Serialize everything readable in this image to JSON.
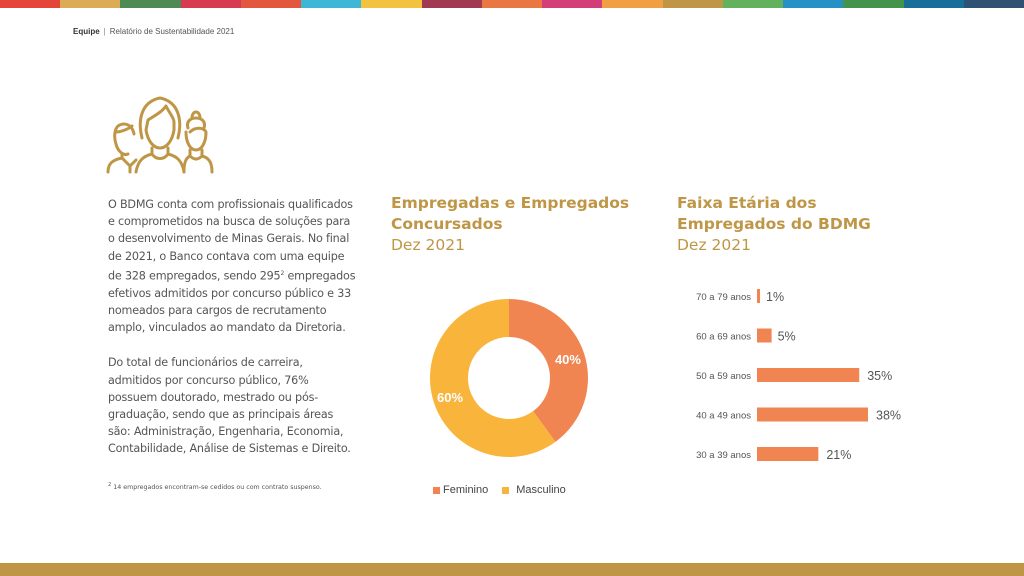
{
  "topbar_colors": [
    "#e5443a",
    "#dbab55",
    "#4e8a53",
    "#d83b4f",
    "#e4573f",
    "#3eb6d6",
    "#f2c33e",
    "#a23952",
    "#ea7743",
    "#d33d78",
    "#f29f43",
    "#bf9646",
    "#62b15d",
    "#2691c6",
    "#44934a",
    "#176f99",
    "#2f5174"
  ],
  "header": {
    "section": "Equipe",
    "separator": "|",
    "report": "Relatório de Sustentabilidade 2021"
  },
  "icons": {
    "team": "people-group-icon"
  },
  "body": {
    "paragraph1_before_sup": "O BDMG conta com profissionais qualificados e comprometidos na busca de soluções para o desenvolvimento de Minas Gerais. No final de 2021, o Banco contava com uma equipe de 328 empregados, sendo 295",
    "paragraph1_sup": "2",
    "paragraph1_after_sup": " empregados efetivos admitidos por concurso público e 33 nomeados para cargos de recrutamento amplo, vinculados ao mandato da Diretoria.",
    "paragraph2": "Do total de funcionários de carreira, admitidos por concurso público, 76% possuem doutorado, mestrado ou pós-graduação, sendo que as principais áreas são: Administração, Engenharia, Economia, Contabilidade, Análise de Sistemas e Direito."
  },
  "footnote": {
    "marker": "2",
    "text": " 14 empregados encontram-se cedidos ou com contrato suspenso."
  },
  "colors": {
    "gold": "#bf9646",
    "feminino": "#f08552",
    "masculino": "#f9b43c"
  },
  "chart_data": [
    {
      "type": "pie",
      "donut": true,
      "title": "Empregadas e Empregados Concursados",
      "subtitle": "Dez 2021",
      "categories": [
        "Feminino",
        "Masculino"
      ],
      "values": [
        40,
        60
      ],
      "labels": [
        "40%",
        "60%"
      ],
      "colors": [
        "#f08552",
        "#f9b43c"
      ],
      "legend": "bottom"
    },
    {
      "type": "bar",
      "orientation": "horizontal",
      "title": "Faixa Etária dos Empregados do BDMG",
      "subtitle": "Dez 2021",
      "categories": [
        "70 a 79 anos",
        "60 a 69 anos",
        "50 a 59 anos",
        "40 a 49 anos",
        "30 a 39 anos"
      ],
      "values": [
        1,
        5,
        35,
        38,
        21
      ],
      "labels": [
        "1%",
        "5%",
        "35%",
        "38%",
        "21%"
      ],
      "color": "#f08552",
      "xlim": [
        0,
        38
      ],
      "grid": false
    }
  ]
}
